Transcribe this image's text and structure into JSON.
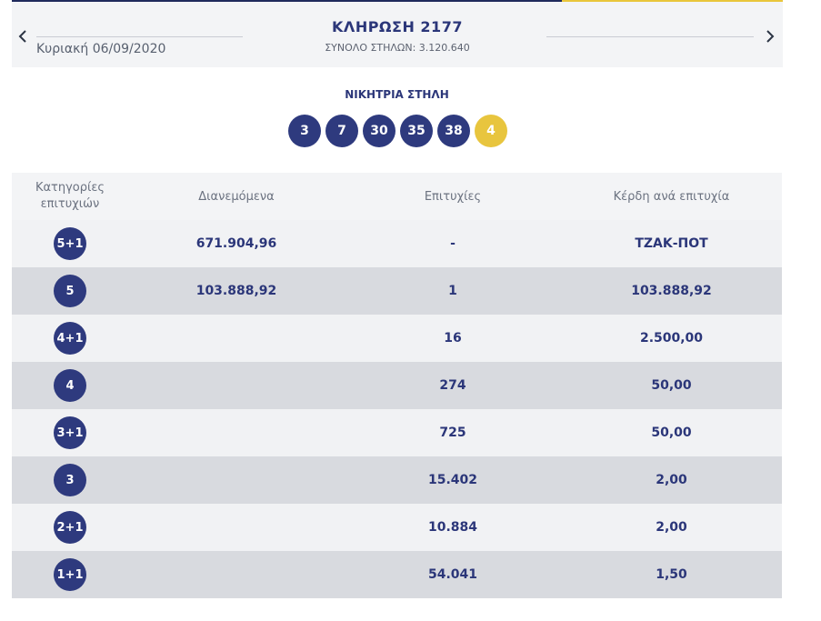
{
  "header": {
    "date": "Κυριακή 06/09/2020",
    "title": "ΚΛΗΡΩΣΗ 2177",
    "total_columns": "ΣΥΝΟΛΟ ΣΤΗΛΩΝ: 3.120.640"
  },
  "winning": {
    "label": "ΝΙΚΗΤΡΙΑ ΣΤΗΛΗ",
    "numbers": [
      "3",
      "7",
      "30",
      "35",
      "38"
    ],
    "joker": "4"
  },
  "colors": {
    "navy": "#2e3a7e",
    "joker_yellow": "#e8c53e"
  },
  "table": {
    "headers": {
      "category_line1": "Κατηγορίες",
      "category_line2": "επιτυχιών",
      "distributed": "Διανεμόμενα",
      "winners": "Επιτυχίες",
      "prize": "Κέρδη ανά επιτυχία"
    },
    "rows": [
      {
        "category": "5+1",
        "distributed": "671.904,96",
        "winners": "-",
        "prize": "ΤΖΑΚ-ΠΟΤ"
      },
      {
        "category": "5",
        "distributed": "103.888,92",
        "winners": "1",
        "prize": "103.888,92"
      },
      {
        "category": "4+1",
        "distributed": "",
        "winners": "16",
        "prize": "2.500,00"
      },
      {
        "category": "4",
        "distributed": "",
        "winners": "274",
        "prize": "50,00"
      },
      {
        "category": "3+1",
        "distributed": "",
        "winners": "725",
        "prize": "50,00"
      },
      {
        "category": "3",
        "distributed": "",
        "winners": "15.402",
        "prize": "2,00"
      },
      {
        "category": "2+1",
        "distributed": "",
        "winners": "10.884",
        "prize": "2,00"
      },
      {
        "category": "1+1",
        "distributed": "",
        "winners": "54.041",
        "prize": "1,50"
      }
    ]
  }
}
